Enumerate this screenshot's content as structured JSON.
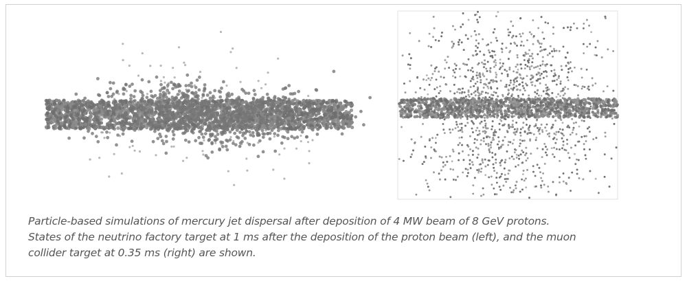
{
  "caption": {
    "lines": [
      "Particle-based simulations of mercury jet dispersal after deposition of 4 MW beam of 8 GeV protons.",
      "States of the neutrino factory target at 1 ms after the deposition of the proton beam (left), and the muon",
      "collider target at 0.35 ms (right) are shown."
    ]
  }
}
